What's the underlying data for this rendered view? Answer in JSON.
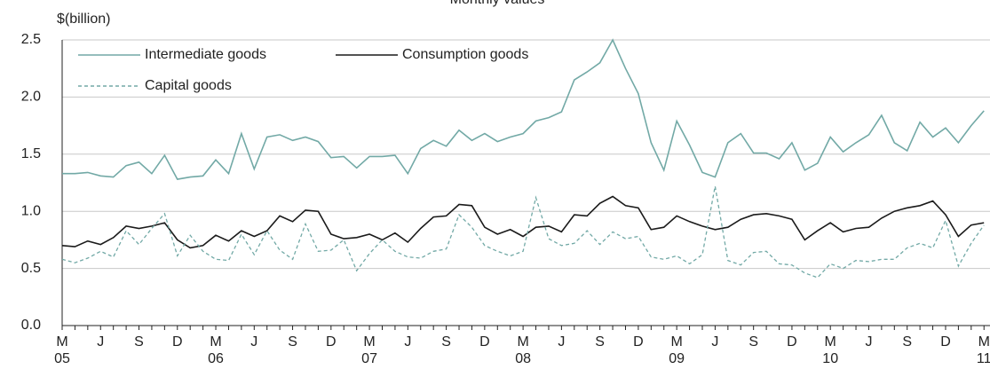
{
  "chart_data": {
    "type": "line",
    "title": "Monthly values",
    "y_label": "$(billion)",
    "categories": [
      "M",
      null,
      null,
      "J",
      null,
      null,
      "S",
      null,
      null,
      "D",
      null,
      null,
      "M",
      null,
      null,
      "J",
      null,
      null,
      "S",
      null,
      null,
      "D",
      null,
      null,
      "M",
      null,
      null,
      "J",
      null,
      null,
      "S",
      null,
      null,
      "D",
      null,
      null,
      "M",
      null,
      null,
      "J",
      null,
      null,
      "S",
      null,
      null,
      "D",
      null,
      null,
      "M",
      null,
      null,
      "J",
      null,
      null,
      "S",
      null,
      null,
      "D",
      null,
      null,
      "M",
      null,
      null,
      "J",
      null,
      null,
      "S",
      null,
      null,
      "D",
      null,
      null,
      "M"
    ],
    "year_labels": [
      "05",
      "06",
      "07",
      "08",
      "09",
      "10",
      "11"
    ],
    "ylim": [
      0,
      2.5
    ],
    "yticks": [
      {
        "value": 0,
        "label": "0.0"
      },
      0.5,
      {
        "value": 1,
        "label": "1.0"
      },
      1.5,
      {
        "value": 2,
        "label": "2.0"
      },
      2.5
    ],
    "grid": true,
    "series": [
      {
        "name": "Intermediate goods",
        "color": "#72a9a6",
        "style": "solid",
        "values": [
          1.33,
          1.33,
          1.34,
          1.31,
          1.3,
          1.4,
          1.43,
          1.33,
          1.49,
          1.28,
          1.3,
          1.31,
          1.45,
          1.33,
          1.68,
          1.37,
          1.65,
          1.67,
          1.62,
          1.65,
          1.61,
          1.47,
          1.48,
          1.38,
          1.48,
          1.48,
          1.49,
          1.33,
          1.55,
          1.62,
          1.57,
          1.71,
          1.62,
          1.68,
          1.61,
          1.65,
          1.68,
          1.79,
          1.82,
          1.87,
          2.15,
          2.22,
          2.3,
          2.5,
          2.25,
          2.03,
          1.6,
          1.36,
          1.79,
          1.58,
          1.34,
          1.3,
          1.6,
          1.68,
          1.51,
          1.51,
          1.46,
          1.6,
          1.36,
          1.42,
          1.65,
          1.52,
          1.6,
          1.67,
          1.84,
          1.6,
          1.53,
          1.78,
          1.65,
          1.73,
          1.6,
          1.75,
          1.88
        ]
      },
      {
        "name": "Consumption goods",
        "color": "#1a1a1a",
        "style": "solid",
        "values": [
          0.7,
          0.69,
          0.74,
          0.71,
          0.77,
          0.87,
          0.85,
          0.87,
          0.9,
          0.75,
          0.68,
          0.7,
          0.79,
          0.74,
          0.83,
          0.78,
          0.83,
          0.96,
          0.91,
          1.01,
          1.0,
          0.8,
          0.76,
          0.77,
          0.8,
          0.75,
          0.81,
          0.73,
          0.85,
          0.95,
          0.96,
          1.06,
          1.05,
          0.86,
          0.8,
          0.84,
          0.78,
          0.86,
          0.87,
          0.82,
          0.97,
          0.96,
          1.07,
          1.13,
          1.05,
          1.03,
          0.84,
          0.86,
          0.96,
          0.91,
          0.87,
          0.84,
          0.86,
          0.93,
          0.97,
          0.98,
          0.96,
          0.93,
          0.75,
          0.83,
          0.9,
          0.82,
          0.85,
          0.86,
          0.94,
          1.0,
          1.03,
          1.05,
          1.09,
          0.97,
          0.78,
          0.88,
          0.9
        ]
      },
      {
        "name": "Capital goods",
        "color": "#72a9a6",
        "style": "dashed",
        "values": [
          0.58,
          0.55,
          0.59,
          0.65,
          0.6,
          0.83,
          0.71,
          0.85,
          0.98,
          0.61,
          0.79,
          0.65,
          0.58,
          0.57,
          0.8,
          0.62,
          0.83,
          0.66,
          0.58,
          0.89,
          0.65,
          0.66,
          0.75,
          0.48,
          0.63,
          0.75,
          0.65,
          0.6,
          0.59,
          0.65,
          0.67,
          0.97,
          0.86,
          0.7,
          0.65,
          0.61,
          0.65,
          1.12,
          0.76,
          0.7,
          0.72,
          0.83,
          0.71,
          0.82,
          0.76,
          0.78,
          0.6,
          0.58,
          0.61,
          0.54,
          0.62,
          1.22,
          0.57,
          0.53,
          0.64,
          0.65,
          0.54,
          0.53,
          0.46,
          0.42,
          0.54,
          0.5,
          0.57,
          0.56,
          0.58,
          0.58,
          0.68,
          0.72,
          0.68,
          0.92,
          0.52,
          0.72,
          0.88
        ]
      }
    ]
  }
}
